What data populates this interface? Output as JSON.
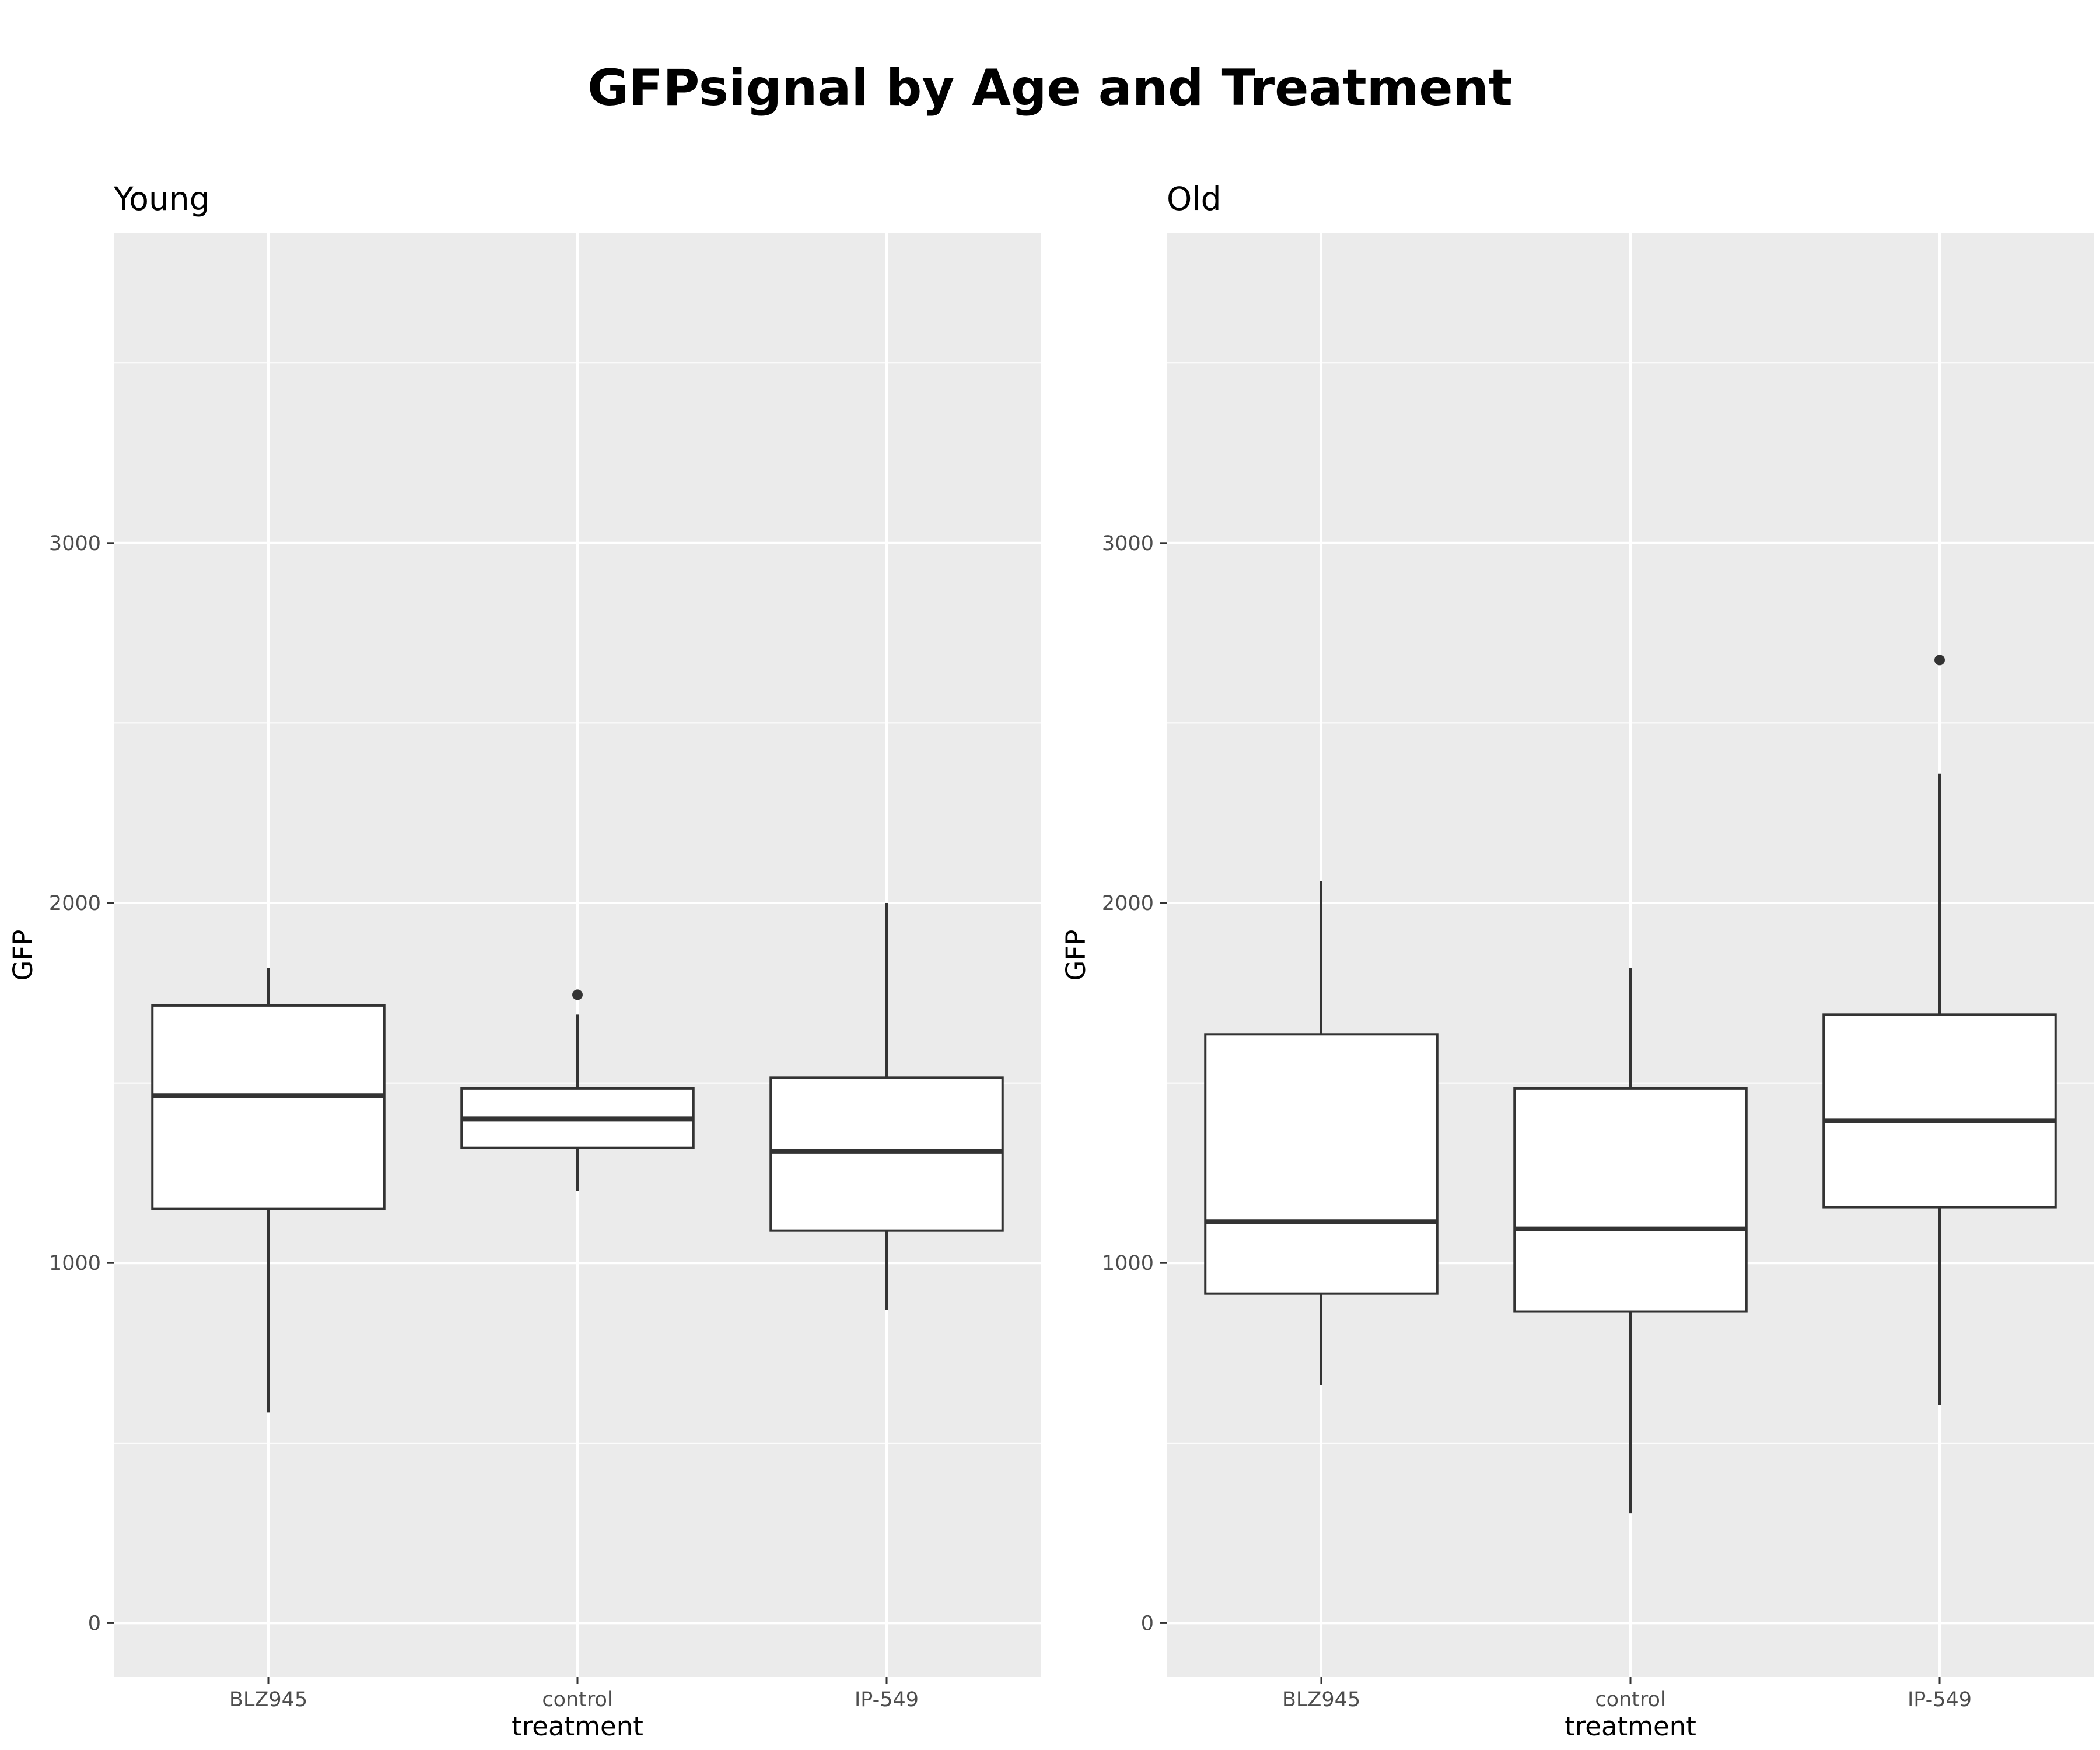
{
  "chart_data": {
    "type": "boxplot",
    "title": "GFPsignal by Age and Treatment",
    "xlabel": "treatment",
    "ylabel": "GFP",
    "ylim": [
      -150,
      3860
    ],
    "yticks": [
      0,
      1000,
      2000,
      3000
    ],
    "categories": [
      "BLZ945",
      "control",
      "IP-549"
    ],
    "grid": true,
    "colors": {
      "panel_bg": "#ebebeb",
      "grid": "#ffffff",
      "box_fill": "#ffffff",
      "box_line": "#333333"
    },
    "panels": [
      {
        "label": "Young",
        "boxes": [
          {
            "category": "BLZ945",
            "whisker_low": 585,
            "q1": 1150,
            "median": 1465,
            "q3": 1715,
            "whisker_high": 1820,
            "outliers": []
          },
          {
            "category": "control",
            "whisker_low": 1200,
            "q1": 1320,
            "median": 1400,
            "q3": 1485,
            "whisker_high": 1690,
            "outliers": [
              1745
            ]
          },
          {
            "category": "IP-549",
            "whisker_low": 870,
            "q1": 1090,
            "median": 1310,
            "q3": 1515,
            "whisker_high": 2000,
            "outliers": []
          }
        ]
      },
      {
        "label": "Old",
        "boxes": [
          {
            "category": "BLZ945",
            "whisker_low": 660,
            "q1": 915,
            "median": 1115,
            "q3": 1635,
            "whisker_high": 2060,
            "outliers": []
          },
          {
            "category": "control",
            "whisker_low": 305,
            "q1": 865,
            "median": 1095,
            "q3": 1485,
            "whisker_high": 1820,
            "outliers": []
          },
          {
            "category": "IP-549",
            "whisker_low": 605,
            "q1": 1155,
            "median": 1395,
            "q3": 1690,
            "whisker_high": 2360,
            "outliers": [
              2675
            ]
          }
        ]
      }
    ]
  }
}
